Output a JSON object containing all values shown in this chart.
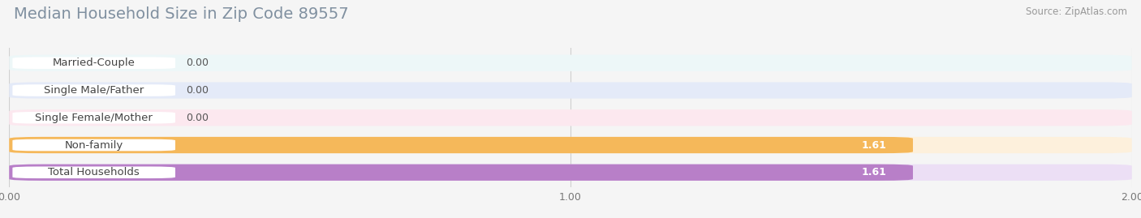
{
  "title": "Median Household Size in Zip Code 89557",
  "source": "Source: ZipAtlas.com",
  "categories": [
    "Married-Couple",
    "Single Male/Father",
    "Single Female/Mother",
    "Non-family",
    "Total Households"
  ],
  "values": [
    0.0,
    0.0,
    0.0,
    1.61,
    1.61
  ],
  "bar_colors": [
    "#6dcdd4",
    "#a0b4e8",
    "#f09ab0",
    "#f5b85a",
    "#b87fc8"
  ],
  "bar_bg_colors": [
    "#edf7f8",
    "#e4eaf8",
    "#fce8ef",
    "#fdf0dc",
    "#ecdff5"
  ],
  "xlim": [
    0,
    2.0
  ],
  "xticks": [
    0.0,
    1.0,
    2.0
  ],
  "xtick_labels": [
    "0.00",
    "1.00",
    "2.00"
  ],
  "value_labels": [
    "0.00",
    "0.00",
    "0.00",
    "1.61",
    "1.61"
  ],
  "background_color": "#ffffff",
  "fig_bg_color": "#f5f5f5",
  "title_fontsize": 14,
  "label_fontsize": 9.5,
  "value_fontsize": 9,
  "tick_fontsize": 9,
  "source_fontsize": 8.5
}
